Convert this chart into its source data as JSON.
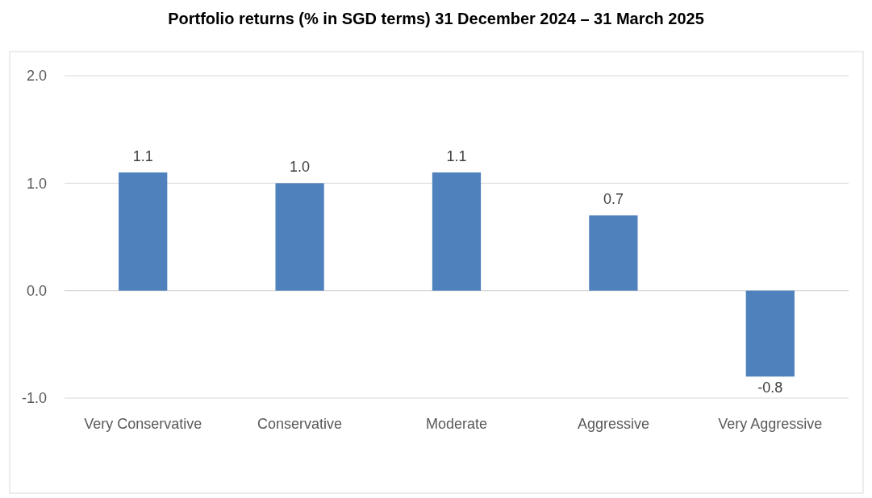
{
  "chart_data": {
    "type": "bar",
    "title": "Portfolio returns (% in SGD terms) 31 December 2024 – 31 March 2025",
    "categories": [
      "Very Conservative",
      "Conservative",
      "Moderate",
      "Aggressive",
      "Very Aggressive"
    ],
    "values": [
      1.1,
      1.0,
      1.1,
      0.7,
      -0.8
    ],
    "value_labels": [
      "1.1",
      "1.0",
      "1.1",
      "0.7",
      "-0.8"
    ],
    "color": "#4f81bd",
    "ylim": [
      -1,
      2
    ],
    "yticks": [
      {
        "value": -1,
        "label": "-1.0"
      },
      {
        "value": 0,
        "label": "0.0"
      },
      {
        "value": 1,
        "label": "1.0"
      },
      {
        "value": 2,
        "label": "2.0"
      }
    ],
    "grid": "y"
  }
}
